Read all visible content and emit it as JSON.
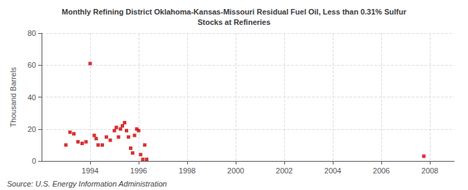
{
  "chart_data": {
    "type": "scatter",
    "title": "Monthly Refining District Oklahoma-Kansas-Missouri Residual Fuel Oil, Less than 0.31% Sulfur\nStocks at Refineries",
    "ylabel": "Thousand Barrels",
    "annotations": [
      "Source: U.S. Energy Information Administration"
    ],
    "x": [
      1993.0,
      1993.17,
      1993.33,
      1993.5,
      1993.67,
      1993.83,
      1994.0,
      1994.17,
      1994.33,
      1994.5,
      1994.67,
      1994.83,
      1994.25,
      1995.0,
      1995.08,
      1995.17,
      1995.25,
      1995.33,
      1995.42,
      1995.5,
      1995.58,
      1995.67,
      1995.75,
      1995.83,
      1995.92,
      1996.0,
      1996.08,
      1996.17,
      1996.25,
      1996.33,
      2007.75
    ],
    "values": [
      10,
      18,
      17,
      12,
      11,
      12,
      61,
      16,
      10,
      10,
      15,
      13,
      14,
      19,
      21,
      15,
      20,
      22,
      24,
      19,
      15,
      8,
      5,
      16,
      20,
      19,
      4,
      1,
      10,
      1,
      3
    ],
    "color": "#cc0000",
    "marker": "square",
    "xlim": [
      1992.0,
      2009.0
    ],
    "xticks": [
      1994,
      1996,
      1998,
      2000,
      2002,
      2004,
      2006,
      2008
    ],
    "ylim": [
      0,
      80
    ],
    "yticks": [
      0,
      20,
      40,
      60,
      80
    ],
    "grid": true
  }
}
